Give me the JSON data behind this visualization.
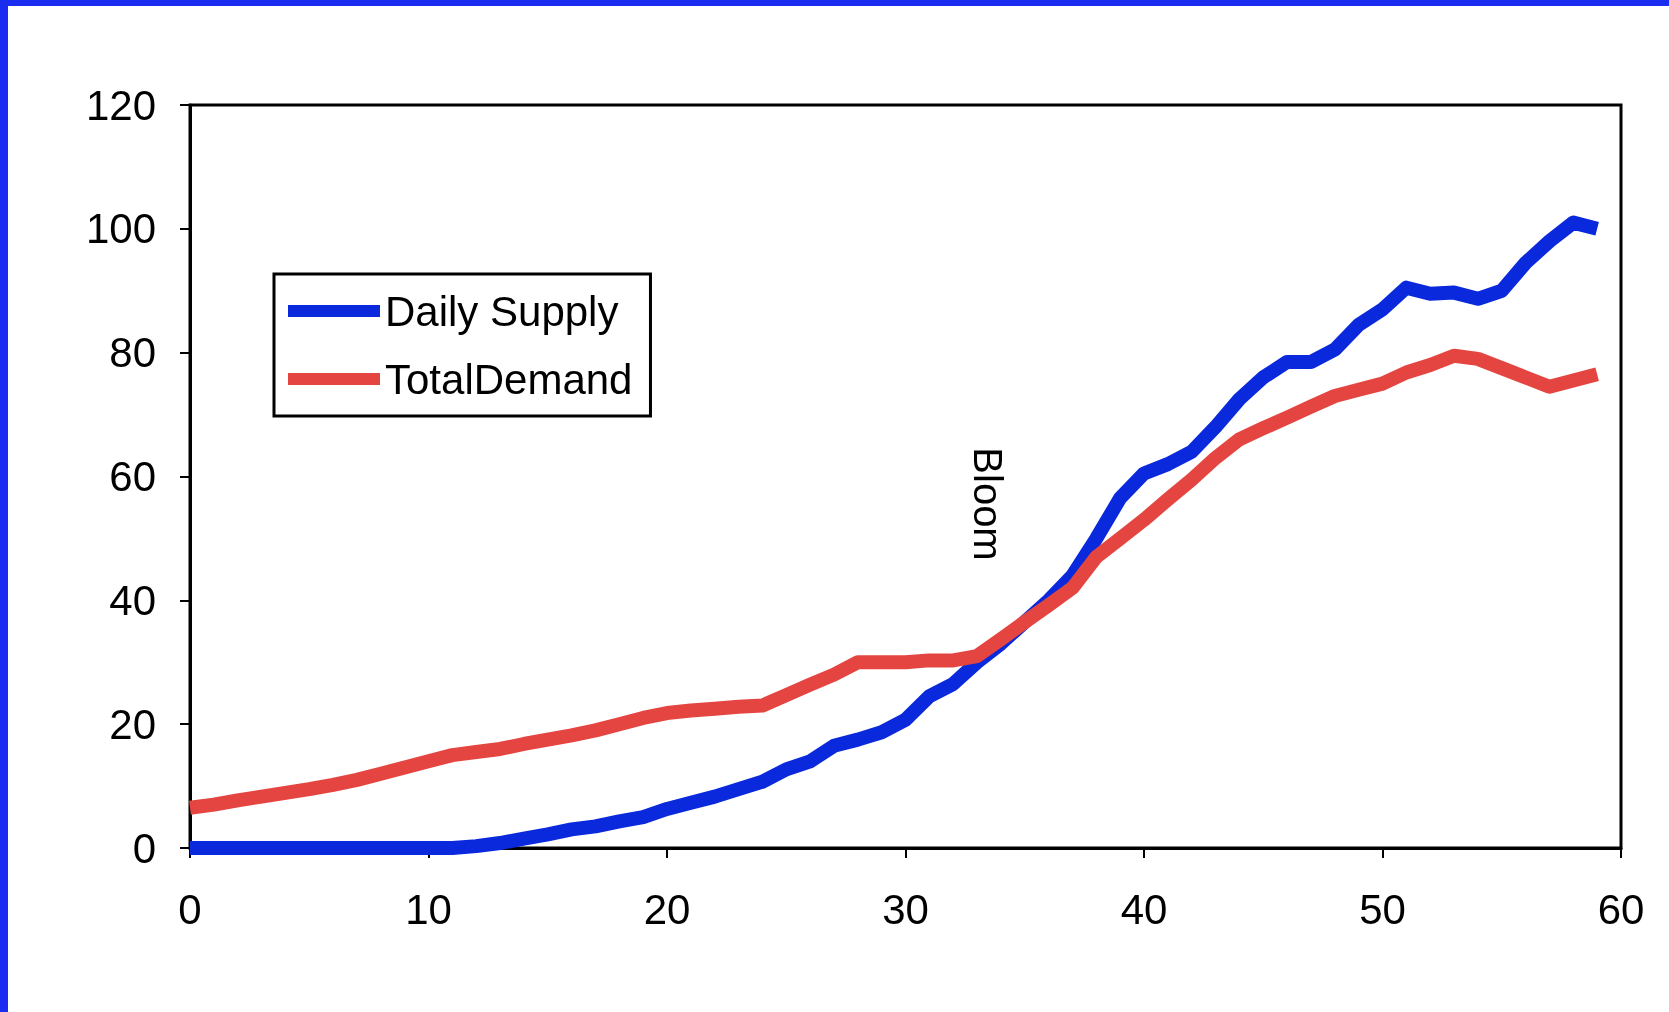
{
  "chart_data": {
    "type": "line",
    "x": [
      0,
      1,
      2,
      3,
      4,
      5,
      6,
      7,
      8,
      9,
      10,
      11,
      12,
      13,
      14,
      15,
      16,
      17,
      18,
      19,
      20,
      21,
      22,
      23,
      24,
      25,
      26,
      27,
      28,
      29,
      30,
      31,
      32,
      33,
      34,
      35,
      36,
      37,
      38,
      39,
      40,
      41,
      42,
      43,
      44,
      45,
      46,
      47,
      48,
      49,
      50,
      51,
      52,
      53,
      54,
      55,
      56,
      57,
      58,
      59
    ],
    "series": [
      {
        "name": "Daily Supply",
        "color": "#0a28dc",
        "values": [
          0,
          0,
          0,
          0,
          0,
          0,
          0,
          0,
          0,
          0,
          0,
          0,
          0.3,
          0.8,
          1.5,
          2.2,
          3,
          3.5,
          4.3,
          5,
          6.3,
          7.3,
          8.3,
          9.5,
          10.7,
          12.7,
          14,
          16.5,
          17.5,
          18.7,
          20.7,
          24.5,
          26.5,
          30,
          33,
          36.5,
          40,
          44,
          50,
          56.5,
          60.5,
          62,
          64,
          68,
          72.5,
          76,
          78.5,
          78.5,
          80.5,
          84.5,
          87,
          90.5,
          89.5,
          89.7,
          88.7,
          90,
          94.5,
          98,
          101,
          100
        ]
      },
      {
        "name": "TotalDemand",
        "color": "#e54540",
        "values": [
          6.5,
          7,
          7.7,
          8.3,
          8.9,
          9.5,
          10.2,
          11,
          12,
          13,
          14,
          15,
          15.5,
          16,
          16.8,
          17.5,
          18.2,
          19,
          20,
          21,
          21.8,
          22.2,
          22.5,
          22.8,
          23,
          24.7,
          26.4,
          28,
          30,
          30,
          30,
          30.3,
          30.3,
          31,
          33.7,
          36.5,
          39.2,
          42,
          47,
          50,
          53,
          56.3,
          59.5,
          63,
          66,
          67.8,
          69.5,
          71.3,
          73,
          74,
          75,
          76.8,
          78,
          79.5,
          79,
          77.5,
          76,
          74.5,
          75.5,
          76.5
        ]
      }
    ],
    "xlim": [
      0,
      60
    ],
    "xticks": [
      0,
      10,
      20,
      30,
      40,
      50,
      60
    ],
    "ylim": [
      0,
      120
    ],
    "yticks": [
      0,
      20,
      40,
      60,
      80,
      100,
      120
    ],
    "grid": false,
    "legend": "top left",
    "marker": "none",
    "line_style": "solid",
    "annotations": [
      "Bloom"
    ]
  }
}
